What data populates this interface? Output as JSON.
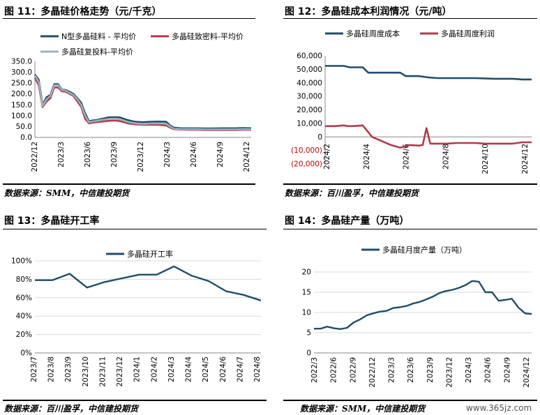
{
  "titles": {
    "fig11": "图 11：多晶硅价格走势（元/千克）",
    "fig12": "图 12：多晶硅成本利润情况（元/吨）",
    "fig13": "图 13：多晶硅开工率",
    "fig14": "图 14：多晶硅产量（万吨）"
  },
  "sources": {
    "fig11": "数据来源：SMM，中信建投期货",
    "fig12": "数据来源：百川盈孚，中信建投期货",
    "fig13": "数据来源：百川盈孚，中信建投期货",
    "fig14": "数据来源：SMM，中信建投期货"
  },
  "watermark": "www.365jz.com",
  "colors": {
    "navy": "#1F4E6B",
    "red": "#B23A4B",
    "gray": "#9FB0BD"
  },
  "chart_data": [
    {
      "id": "fig11",
      "type": "line",
      "ylim": [
        0,
        350
      ],
      "yticks": [
        "0.0",
        "50.0",
        "100.0",
        "150.0",
        "200.0",
        "250.0",
        "300.0",
        "350.0"
      ],
      "xticks": [
        "2022/12",
        "2023/3",
        "2023/6",
        "2023/9",
        "2023/12",
        "2024/3",
        "2024/6",
        "2024/9",
        "2024/12"
      ],
      "x_range": [
        0,
        28
      ],
      "legend": [
        "N型多晶硅料 - 平均价",
        "多晶硅致密料-平均价",
        "多晶硅复投料-平均价"
      ],
      "series": [
        {
          "name": "N型多晶硅料 - 平均价",
          "color": "#1F4E6B",
          "x": [
            0,
            0.5,
            1,
            1.5,
            2,
            2.5,
            3,
            3.5,
            4,
            4.5,
            5,
            5.5,
            6,
            6.5,
            7,
            7.5,
            8,
            8.5,
            9,
            9.5,
            10,
            10.5,
            11,
            12,
            13,
            14,
            15,
            16,
            17,
            17.5,
            18,
            19,
            20,
            21,
            22,
            23,
            24,
            25,
            26,
            27,
            28
          ],
          "values": [
            290,
            265,
            150,
            185,
            195,
            245,
            245,
            220,
            218,
            210,
            200,
            180,
            160,
            110,
            75,
            78,
            80,
            84,
            88,
            92,
            93,
            93,
            92,
            80,
            72,
            70,
            72,
            73,
            72,
            55,
            45,
            42,
            42,
            42,
            41,
            41,
            42,
            42,
            42,
            43,
            42
          ]
        },
        {
          "name": "多晶硅致密料-平均价",
          "color": "#B23A4B",
          "x": [
            0,
            0.5,
            1,
            1.5,
            2,
            2.5,
            3,
            3.5,
            4,
            4.5,
            5,
            5.5,
            6,
            6.5,
            7,
            7.5,
            8,
            8.5,
            9,
            9.5,
            10,
            10.5,
            11,
            12,
            13,
            14,
            15,
            16,
            17,
            17.5,
            18,
            19,
            20,
            21,
            22,
            23,
            24,
            25,
            26,
            27,
            28
          ],
          "values": [
            275,
            240,
            140,
            165,
            180,
            230,
            230,
            212,
            210,
            200,
            190,
            165,
            140,
            85,
            65,
            68,
            70,
            72,
            74,
            76,
            77,
            77,
            75,
            65,
            60,
            58,
            58,
            58,
            55,
            45,
            38,
            36,
            35,
            35,
            34,
            34,
            34,
            34,
            34,
            35,
            35
          ]
        },
        {
          "name": "多晶硅复投料-平均价",
          "color": "#9FB0BD",
          "x": [
            0,
            0.5,
            1,
            1.5,
            2,
            2.5,
            3,
            3.5,
            4,
            4.5,
            5,
            5.5,
            6,
            6.5,
            7,
            7.5,
            8,
            8.5,
            9,
            9.5,
            10,
            10.5,
            11,
            12,
            13,
            14,
            15,
            16,
            17,
            17.5,
            18,
            19,
            20,
            21,
            22,
            23,
            24,
            25,
            26,
            27,
            28
          ],
          "values": [
            285,
            255,
            145,
            175,
            190,
            240,
            240,
            218,
            215,
            205,
            195,
            175,
            150,
            100,
            70,
            74,
            76,
            80,
            82,
            85,
            86,
            86,
            84,
            72,
            65,
            62,
            64,
            65,
            63,
            50,
            40,
            38,
            38,
            38,
            37,
            37,
            37,
            37,
            37,
            38,
            38
          ]
        }
      ]
    },
    {
      "id": "fig12",
      "type": "line",
      "ylim": [
        -20000,
        60000
      ],
      "yticks": [
        "(20,000)",
        "(10,000)",
        "0",
        "10,000",
        "20,000",
        "30,000",
        "40,000",
        "50,000",
        "60,000"
      ],
      "xticks": [
        "2024/2",
        "2024/4",
        "2024/6",
        "2024/8",
        "2024/10",
        "2024/12"
      ],
      "x_range": [
        0,
        11
      ],
      "legend": [
        "多晶硅周度成本",
        "多晶硅周度利润"
      ],
      "series": [
        {
          "name": "多晶硅周度成本",
          "color": "#1F4E6B",
          "x": [
            0,
            1,
            1.3,
            2,
            2.3,
            2.8,
            3,
            4,
            4.3,
            5,
            5.5,
            6,
            7,
            8,
            9,
            10,
            10.5,
            11
          ],
          "values": [
            52500,
            52500,
            51500,
            51500,
            47500,
            47500,
            47500,
            47500,
            45000,
            45000,
            44000,
            43500,
            43500,
            43500,
            43000,
            43000,
            42500,
            42500
          ]
        },
        {
          "name": "多晶硅周度利润",
          "color": "#B23A4B",
          "x": [
            0,
            0.5,
            1,
            1.2,
            1.5,
            2,
            2.3,
            2.5,
            3,
            3.5,
            4,
            4.5,
            5,
            5.2,
            5.4,
            5.6,
            6,
            6.5,
            7,
            7.5,
            8,
            8.5,
            9,
            9.5,
            10,
            10.5,
            11
          ],
          "values": [
            8000,
            8000,
            8500,
            8000,
            8000,
            8500,
            3500,
            0,
            -3000,
            -6000,
            -8000,
            -6000,
            -6500,
            -6000,
            6500,
            -5000,
            -5000,
            -5000,
            -4500,
            -4500,
            -4500,
            -5000,
            -5000,
            -5000,
            -5000,
            -4000,
            -4000
          ]
        }
      ]
    },
    {
      "id": "fig13",
      "type": "line",
      "ylim": [
        0,
        100
      ],
      "yticks": [
        "0%",
        "20%",
        "40%",
        "60%",
        "80%",
        "100%"
      ],
      "xticks": [
        "2023/7",
        "2023/8",
        "2023/9",
        "2023/10",
        "2023/11",
        "2023/12",
        "2024/1",
        "2024/2",
        "2024/3",
        "2024/4",
        "2024/5",
        "2024/6",
        "2024/7",
        "2024/8"
      ],
      "legend": [
        "多晶硅开工率"
      ],
      "series": [
        {
          "name": "多晶硅开工率",
          "color": "#1F4E6B",
          "values": [
            79,
            79,
            86,
            71,
            77,
            81,
            85,
            85,
            94,
            84,
            78,
            67,
            63,
            57
          ]
        }
      ]
    },
    {
      "id": "fig14",
      "type": "line",
      "ylim": [
        0,
        20
      ],
      "yticks": [
        "0",
        "5",
        "10",
        "15",
        "20"
      ],
      "xticks": [
        "2022/3",
        "2022/6",
        "2022/9",
        "2022/12",
        "2023/3",
        "2023/6",
        "2023/9",
        "2023/12",
        "2024/3",
        "2024/6",
        "2024/9",
        "2024/12"
      ],
      "legend": [
        "多晶硅月度产量（万吨）"
      ],
      "series": [
        {
          "name": "多晶硅月度产量（万吨）",
          "color": "#1F4E6B",
          "values": [
            6.0,
            6.0,
            6.5,
            6.1,
            5.9,
            6.2,
            7.5,
            8.3,
            9.3,
            9.8,
            10.2,
            10.4,
            11.1,
            11.3,
            11.6,
            12.2,
            12.6,
            13.2,
            13.9,
            14.8,
            15.3,
            15.6,
            16.1,
            16.8,
            17.8,
            17.6,
            15.0,
            15.0,
            12.9,
            13.1,
            13.4,
            11.2,
            9.8,
            9.6
          ]
        }
      ]
    }
  ]
}
